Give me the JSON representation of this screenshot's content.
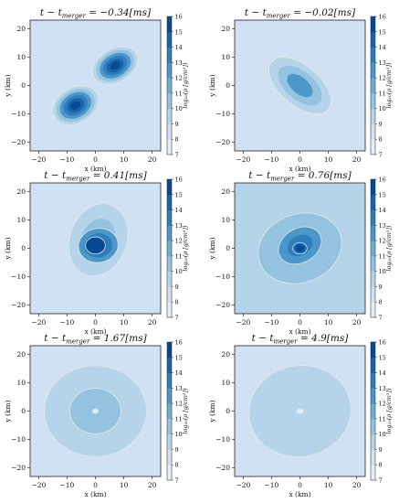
{
  "chart_data": [
    {
      "type": "heatmap",
      "title": "t − t_merger = −0.34[ms]",
      "title_parts": {
        "lhs": "t − t",
        "sub": "merger",
        "rhs": " = −0.34[ms]"
      },
      "xlabel": "x (km)",
      "ylabel": "y (km)",
      "xlim": [
        -23,
        23
      ],
      "ylim": [
        -23,
        23
      ],
      "xticks": [
        "−20",
        "−10",
        "0",
        "10",
        "20"
      ],
      "yticks": [
        "−20",
        "−10",
        "0",
        "10",
        "20"
      ],
      "colorbar": {
        "label": "log₁₀(ρ [g/cm³])",
        "ticks": [
          "7",
          "8",
          "9",
          "10",
          "11",
          "12",
          "13",
          "14",
          "15",
          "16"
        ],
        "range": [
          7,
          16
        ]
      },
      "background_level": 9,
      "blobs": [
        {
          "cx": 7,
          "cy": 7,
          "rx": 8.5,
          "ry": 5.8,
          "rot": 30,
          "levels": [
            10,
            11,
            12,
            13,
            14,
            15
          ]
        },
        {
          "cx": -7,
          "cy": -7,
          "rx": 8.5,
          "ry": 6.2,
          "rot": 30,
          "levels": [
            10,
            11,
            12,
            13,
            14,
            15
          ]
        }
      ]
    },
    {
      "type": "heatmap",
      "title": "t − t_merger = −0.02[ms]",
      "title_parts": {
        "lhs": "t − t",
        "sub": "merger",
        "rhs": " = −0.02[ms]"
      },
      "xlabel": "x (km)",
      "ylabel": "y (km)",
      "xlim": [
        -23,
        23
      ],
      "ylim": [
        -23,
        23
      ],
      "xticks": [
        "−20",
        "−10",
        "0",
        "10",
        "20"
      ],
      "yticks": [
        "−20",
        "−10",
        "0",
        "10",
        "20"
      ],
      "colorbar": {
        "label": "log₁₀(ρ [g/cm³])",
        "ticks": [
          "7",
          "8",
          "9",
          "10",
          "11",
          "12",
          "13",
          "14",
          "15",
          "16"
        ],
        "range": [
          7,
          16
        ]
      },
      "background_level": 9,
      "blobs": [
        {
          "cx": -4,
          "cy": 4,
          "rx": 7.5,
          "ry": 5.5,
          "rot": -35,
          "levels": [
            10,
            11,
            12,
            13,
            14,
            15
          ]
        },
        {
          "cx": 4,
          "cy": -4,
          "rx": 7.5,
          "ry": 5.5,
          "rot": -35,
          "levels": [
            10,
            11,
            12,
            13,
            14,
            15
          ]
        },
        {
          "cx": 0,
          "cy": 0,
          "rx": 13,
          "ry": 7,
          "rot": -40,
          "levels": [
            10,
            11,
            12
          ]
        }
      ]
    },
    {
      "type": "heatmap",
      "title": "t − t_merger = 0.41[ms]",
      "title_parts": {
        "lhs": "t − t",
        "sub": "merger",
        "rhs": " = 0.41[ms]"
      },
      "xlabel": "x (km)",
      "ylabel": "y (km)",
      "xlim": [
        -23,
        23
      ],
      "ylim": [
        -23,
        23
      ],
      "xticks": [
        "−20",
        "−10",
        "0",
        "10",
        "20"
      ],
      "yticks": [
        "−20",
        "−10",
        "0",
        "10",
        "20"
      ],
      "colorbar": {
        "label": "log₁₀(ρ [g/cm³])",
        "ticks": [
          "7",
          "8",
          "9",
          "10",
          "11",
          "12",
          "13",
          "14",
          "15",
          "16"
        ],
        "range": [
          7,
          16
        ]
      },
      "background_level": 9,
      "blobs": [
        {
          "cx": 1,
          "cy": 3,
          "rx": 10,
          "ry": 13,
          "rot": -20,
          "levels": [
            10,
            11
          ]
        },
        {
          "cx": 1,
          "cy": 1,
          "rx": 7,
          "ry": 6,
          "rot": 10,
          "levels": [
            12,
            13,
            14
          ]
        },
        {
          "cx": 0,
          "cy": 1,
          "rx": 3.5,
          "ry": 3,
          "rot": 0,
          "levels": [
            15
          ]
        }
      ]
    },
    {
      "type": "heatmap",
      "title": "t − t_merger = 0.76[ms]",
      "title_parts": {
        "lhs": "t − t",
        "sub": "merger",
        "rhs": " = 0.76[ms]"
      },
      "xlabel": "x (km)",
      "ylabel": "y (km)",
      "xlim": [
        -23,
        23
      ],
      "ylim": [
        -23,
        23
      ],
      "xticks": [
        "−20",
        "−10",
        "0",
        "10",
        "20"
      ],
      "yticks": [
        "−20",
        "−10",
        "0",
        "10",
        "20"
      ],
      "colorbar": {
        "label": "log₁₀(ρ [g/cm³])",
        "ticks": [
          "7",
          "8",
          "9",
          "10",
          "11",
          "12",
          "13",
          "14",
          "15",
          "16"
        ],
        "range": [
          7,
          16
        ]
      },
      "background_level": 10,
      "blobs": [
        {
          "cx": 0,
          "cy": 0,
          "rx": 15,
          "ry": 12,
          "rot": 20,
          "levels": [
            11
          ]
        },
        {
          "cx": 0,
          "cy": 1,
          "rx": 8,
          "ry": 6,
          "rot": 30,
          "levels": [
            12,
            13
          ]
        },
        {
          "cx": 0,
          "cy": 0,
          "rx": 2.5,
          "ry": 2,
          "rot": 0,
          "levels": [
            14,
            15
          ]
        }
      ]
    },
    {
      "type": "heatmap",
      "title": "t − t_merger = 1.67[ms]",
      "title_parts": {
        "lhs": "t − t",
        "sub": "merger",
        "rhs": " = 1.67[ms]"
      },
      "xlabel": "x (km)",
      "ylabel": "y (km)",
      "xlim": [
        -23,
        23
      ],
      "ylim": [
        -23,
        23
      ],
      "xticks": [
        "−20",
        "−10",
        "0",
        "10",
        "20"
      ],
      "yticks": [
        "−20",
        "−10",
        "0",
        "10",
        "20"
      ],
      "colorbar": {
        "label": "log₁₀(ρ [g/cm³])",
        "ticks": [
          "7",
          "8",
          "9",
          "10",
          "11",
          "12",
          "13",
          "14",
          "15",
          "16"
        ],
        "range": [
          7,
          16
        ]
      },
      "background_level": 9,
      "blobs": [
        {
          "cx": 0,
          "cy": 0,
          "rx": 18,
          "ry": 16,
          "rot": 0,
          "levels": [
            10
          ]
        },
        {
          "cx": 0,
          "cy": 0,
          "rx": 9,
          "ry": 8,
          "rot": 0,
          "levels": [
            11
          ]
        },
        {
          "cx": 0,
          "cy": 0,
          "rx": 1,
          "ry": 0.8,
          "rot": 0,
          "levels": [
            8
          ]
        }
      ]
    },
    {
      "type": "heatmap",
      "title": "t − t_merger = 4.9[ms]",
      "title_parts": {
        "lhs": "t − t",
        "sub": "merger",
        "rhs": " = 4.9[ms]"
      },
      "xlabel": "x (km)",
      "ylabel": "y (km)",
      "xlim": [
        -23,
        23
      ],
      "ylim": [
        -23,
        23
      ],
      "xticks": [
        "−20",
        "−10",
        "0",
        "10",
        "20"
      ],
      "yticks": [
        "−20",
        "−10",
        "0",
        "10",
        "20"
      ],
      "colorbar": {
        "label": "log₁₀(ρ [g/cm³])",
        "ticks": [
          "7",
          "8",
          "9",
          "10",
          "11",
          "12",
          "13",
          "14",
          "15",
          "16"
        ],
        "range": [
          7,
          16
        ]
      },
      "background_level": 9,
      "blobs": [
        {
          "cx": 0,
          "cy": 0,
          "rx": 18,
          "ry": 16,
          "rot": 10,
          "levels": [
            10
          ]
        },
        {
          "cx": 0,
          "cy": 0,
          "rx": 1.2,
          "ry": 0.8,
          "rot": 0,
          "levels": [
            8
          ]
        }
      ]
    }
  ]
}
